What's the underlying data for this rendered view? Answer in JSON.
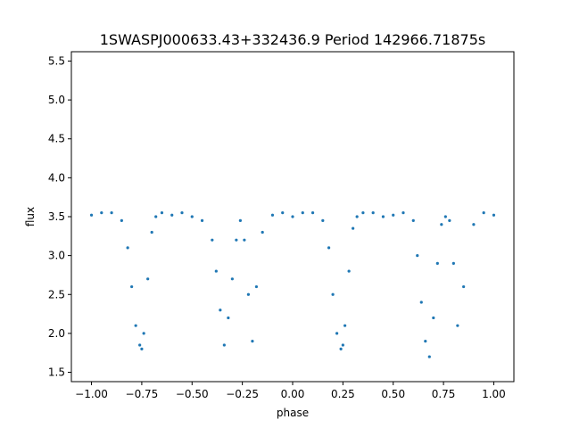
{
  "chart_data": {
    "type": "scatter",
    "title": "1SWASPJ000633.43+332436.9 Period 142966.71875s",
    "xlabel": "phase",
    "ylabel": "flux",
    "xlim": [
      -1.1,
      1.1
    ],
    "ylim": [
      1.38,
      5.62
    ],
    "xticks": [
      -1.0,
      -0.75,
      -0.5,
      -0.25,
      0.0,
      0.25,
      0.5,
      0.75,
      1.0
    ],
    "xtick_labels": [
      "−1.00",
      "−0.75",
      "−0.50",
      "−0.25",
      "0.00",
      "0.25",
      "0.50",
      "0.75",
      "1.00"
    ],
    "yticks": [
      1.5,
      2.0,
      2.5,
      3.0,
      3.5,
      4.0,
      4.5,
      5.0,
      5.5
    ],
    "ytick_labels": [
      "1.5",
      "2.0",
      "2.5",
      "3.0",
      "3.5",
      "4.0",
      "4.5",
      "5.0",
      "5.5"
    ],
    "grid": false,
    "legend": "none",
    "marker_color": "#1f77b4",
    "series": [
      {
        "x": [
          -1.0,
          -0.95,
          -0.9,
          -0.85,
          -0.82,
          -0.8,
          -0.78,
          -0.76,
          -0.75,
          -0.74,
          -0.72,
          -0.7,
          -0.68,
          -0.65,
          -0.6,
          -0.55,
          -0.5,
          -0.45,
          -0.4,
          -0.38,
          -0.36,
          -0.34,
          -0.32,
          -0.3,
          -0.28,
          -0.26,
          -0.24,
          -0.22,
          -0.2,
          -0.18,
          -0.15,
          -0.1,
          -0.05,
          0.0,
          0.05,
          0.1,
          0.15,
          0.18,
          0.2,
          0.22,
          0.24,
          0.25,
          0.26,
          0.28,
          0.3,
          0.32,
          0.35,
          0.4,
          0.45,
          0.5,
          0.55,
          0.6,
          0.62,
          0.64,
          0.66,
          0.68,
          0.7,
          0.72,
          0.74,
          0.76,
          0.78,
          0.8,
          0.82,
          0.85,
          0.9,
          0.95,
          1.0
        ],
        "y": [
          3.52,
          3.55,
          3.55,
          3.45,
          3.1,
          2.6,
          2.1,
          1.85,
          1.8,
          2.0,
          2.7,
          3.3,
          3.5,
          3.55,
          3.52,
          3.55,
          3.5,
          3.45,
          3.2,
          2.8,
          2.3,
          1.85,
          2.2,
          2.7,
          3.2,
          3.45,
          3.2,
          2.5,
          1.9,
          2.6,
          3.3,
          3.52,
          3.55,
          3.5,
          3.55,
          3.55,
          3.45,
          3.1,
          2.5,
          2.0,
          1.8,
          1.85,
          2.1,
          2.8,
          3.35,
          3.5,
          3.55,
          3.55,
          3.5,
          3.52,
          3.55,
          3.45,
          3.0,
          2.4,
          1.9,
          1.7,
          2.2,
          2.9,
          3.4,
          3.5,
          3.45,
          2.9,
          2.1,
          2.6,
          3.4,
          3.55,
          3.52
        ]
      }
    ]
  }
}
